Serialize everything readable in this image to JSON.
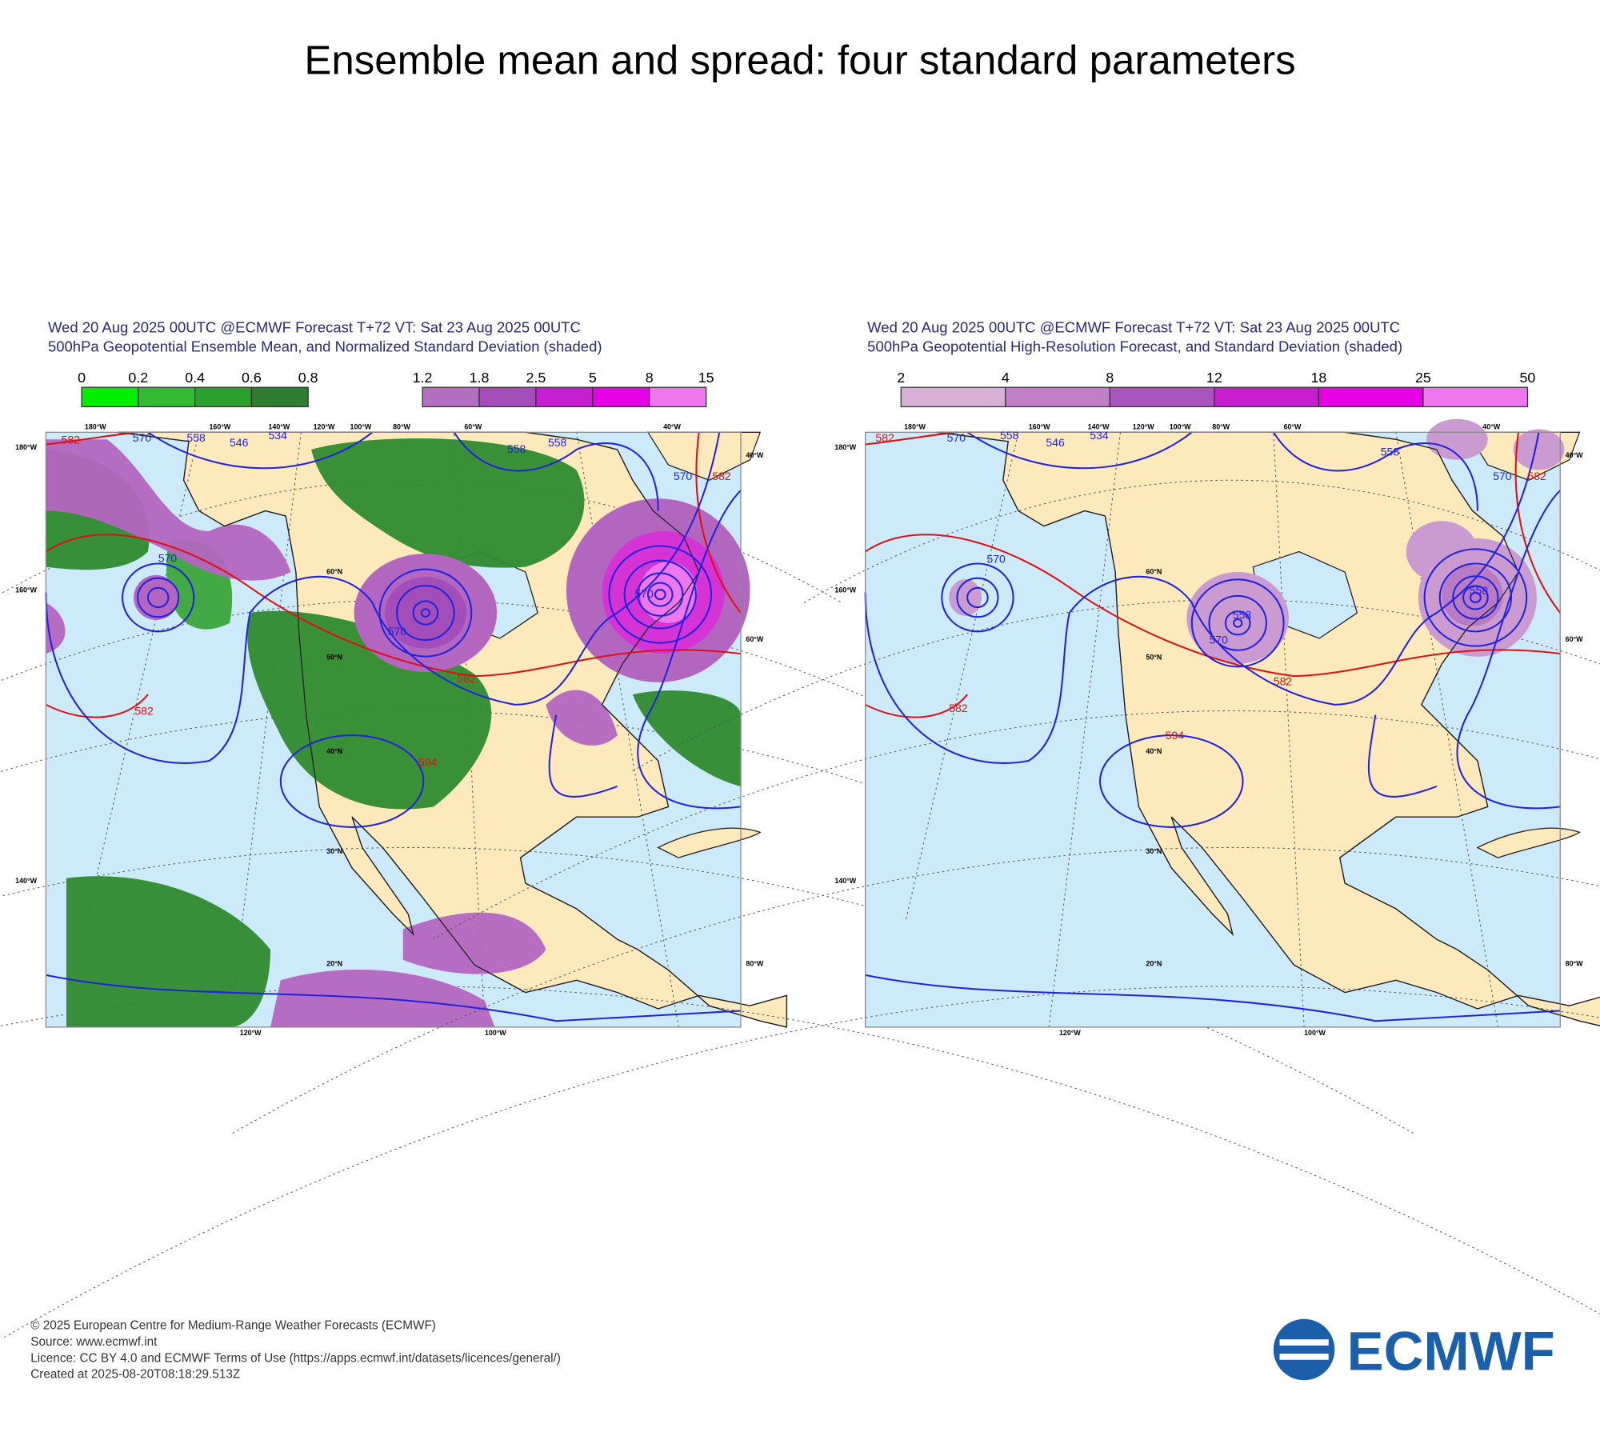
{
  "title": "Ensemble mean and spread: four standard parameters",
  "map_labels": {
    "top": [
      "180°W",
      "160°W",
      "140°W",
      "120°W",
      "100°W",
      "80°W",
      "60°W",
      "40°W"
    ],
    "left": [
      "180°W",
      "160°W",
      "140°W"
    ],
    "right": [
      "40°W",
      "60°W",
      "80°W"
    ],
    "bottom": [
      "120°W",
      "100°W"
    ],
    "latitudes": [
      "60°N",
      "50°N",
      "40°N",
      "30°N",
      "20°N"
    ]
  },
  "panels": [
    {
      "title_line1": "Wed 20 Aug 2025 00UTC @ECMWF Forecast T+72 VT: Sat 23 Aug 2025 00UTC",
      "title_line2": "500hPa Geopotential Ensemble Mean, and Normalized Standard Deviation (shaded)",
      "legends": [
        {
          "labels": [
            0,
            0.2,
            0.4,
            0.6,
            0.8
          ],
          "colors": [
            "#00ee00",
            "#33bb33",
            "#2ca02c",
            "#2e7d32"
          ]
        },
        {
          "labels": [
            1.2,
            1.8,
            2.5,
            5,
            8,
            15
          ],
          "colors": [
            "#b370c0",
            "#a34db8",
            "#c61ed0",
            "#e600e6",
            "#ee77ee"
          ]
        }
      ],
      "contour_labels": [
        582,
        570,
        558,
        546,
        534,
        558,
        558,
        570,
        582,
        570,
        570,
        570,
        582,
        582,
        594
      ]
    },
    {
      "title_line1": "Wed 20 Aug 2025 00UTC @ECMWF Forecast T+72 VT: Sat 23 Aug 2025 00UTC",
      "title_line2": "500hPa Geopotential High-Resolution Forecast, and Standard Deviation (shaded)",
      "legends": [
        {
          "labels": [
            2,
            4,
            8,
            12,
            18,
            25,
            50
          ],
          "colors": [
            "#d6b0d6",
            "#c080c8",
            "#a855bf",
            "#c81ed0",
            "#e600e6",
            "#ee77ee"
          ]
        }
      ],
      "contour_labels": [
        582,
        570,
        558,
        546,
        534,
        558,
        570,
        582,
        570,
        558,
        570,
        558,
        582,
        582,
        594
      ]
    }
  ],
  "footer": [
    "© 2025 European Centre for Medium-Range Weather Forecasts (ECMWF)",
    "Source: www.ecmwf.int",
    "Licence: CC BY 4.0 and ECMWF Terms of Use (https://apps.ecmwf.int/datasets/licences/general/)",
    "Created at 2025-08-20T08:18:29.513Z"
  ],
  "logo": "ECMWF"
}
